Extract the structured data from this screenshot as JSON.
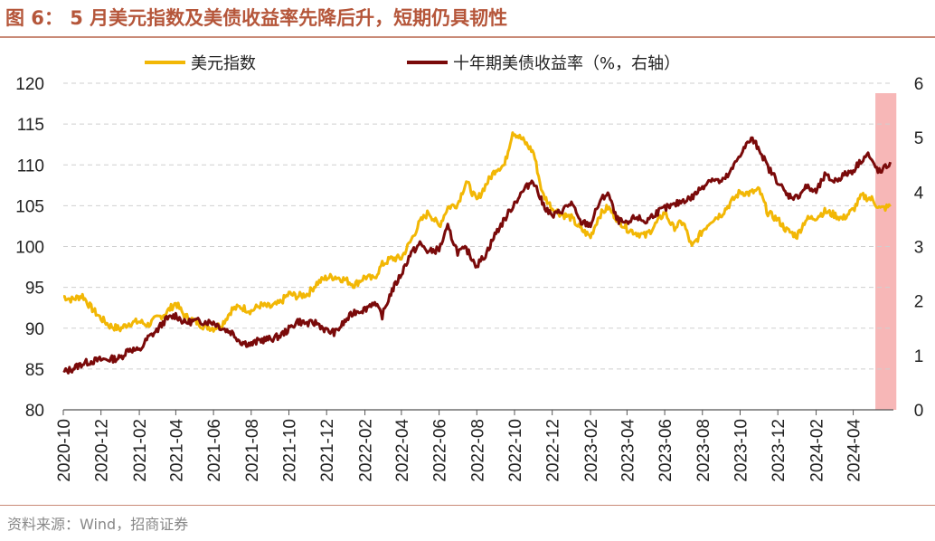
{
  "title": "图 6： 5 月美元指数及美债收益率先降后升，短期仍具韧性",
  "source": "资料来源：Wind，招商证券",
  "colors": {
    "usd": "#F2B705",
    "yield": "#7A0A0A",
    "highlight": "#F7B7B7",
    "grid": "#CFCFCF",
    "brand": "#B5563A"
  },
  "chart_data": {
    "type": "line",
    "title": "",
    "legend": {
      "placement": "top",
      "entries": [
        "美元指数",
        "十年期美债收益率（%，右轴）"
      ]
    },
    "y_left": {
      "lim": [
        80,
        120
      ],
      "ticks": [
        80,
        85,
        90,
        95,
        100,
        105,
        110,
        115,
        120
      ]
    },
    "y_right": {
      "lim": [
        0,
        6
      ],
      "ticks": [
        0,
        1,
        2,
        3,
        4,
        5,
        6
      ]
    },
    "x_ticks": [
      "2020-10",
      "2020-12",
      "2021-02",
      "2021-04",
      "2021-06",
      "2021-08",
      "2021-10",
      "2021-12",
      "2022-02",
      "2022-04",
      "2022-06",
      "2022-08",
      "2022-10",
      "2022-12",
      "2023-02",
      "2023-04",
      "2023-06",
      "2023-08",
      "2023-10",
      "2023-12",
      "2024-02",
      "2024-04"
    ],
    "grid": "horizontal dashed",
    "highlight_period": [
      "2024-05",
      "2024-05"
    ],
    "series": [
      {
        "name": "美元指数",
        "axis": "left",
        "points": [
          [
            "2020-10-01",
            93.9
          ],
          [
            "2020-10-15",
            93.5
          ],
          [
            "2020-11-01",
            94.0
          ],
          [
            "2020-11-15",
            92.5
          ],
          [
            "2020-12-01",
            91.2
          ],
          [
            "2020-12-15",
            90.3
          ],
          [
            "2021-01-01",
            89.9
          ],
          [
            "2021-01-15",
            90.6
          ],
          [
            "2021-02-01",
            90.8
          ],
          [
            "2021-02-15",
            90.4
          ],
          [
            "2021-03-01",
            91.2
          ],
          [
            "2021-03-15",
            91.8
          ],
          [
            "2021-04-01",
            93.1
          ],
          [
            "2021-04-15",
            91.5
          ],
          [
            "2021-05-01",
            90.9
          ],
          [
            "2021-05-15",
            90.3
          ],
          [
            "2021-06-01",
            90.0
          ],
          [
            "2021-06-15",
            90.5
          ],
          [
            "2021-07-01",
            92.3
          ],
          [
            "2021-07-15",
            92.6
          ],
          [
            "2021-08-01",
            92.1
          ],
          [
            "2021-08-15",
            92.8
          ],
          [
            "2021-09-01",
            92.6
          ],
          [
            "2021-09-15",
            93.0
          ],
          [
            "2021-10-01",
            94.2
          ],
          [
            "2021-10-15",
            93.9
          ],
          [
            "2021-11-01",
            94.2
          ],
          [
            "2021-11-15",
            95.5
          ],
          [
            "2021-12-01",
            96.2
          ],
          [
            "2021-12-15",
            96.3
          ],
          [
            "2022-01-01",
            95.9
          ],
          [
            "2022-01-15",
            95.3
          ],
          [
            "2022-02-01",
            96.3
          ],
          [
            "2022-02-15",
            96.0
          ],
          [
            "2022-03-01",
            97.8
          ],
          [
            "2022-03-15",
            98.5
          ],
          [
            "2022-04-01",
            98.6
          ],
          [
            "2022-04-15",
            100.5
          ],
          [
            "2022-05-01",
            103.0
          ],
          [
            "2022-05-15",
            104.2
          ],
          [
            "2022-06-01",
            102.5
          ],
          [
            "2022-06-15",
            104.8
          ],
          [
            "2022-07-01",
            105.2
          ],
          [
            "2022-07-15",
            108.0
          ],
          [
            "2022-08-01",
            105.6
          ],
          [
            "2022-08-15",
            107.5
          ],
          [
            "2022-09-01",
            109.5
          ],
          [
            "2022-09-15",
            110.0
          ],
          [
            "2022-09-28",
            114.1
          ],
          [
            "2022-10-15",
            113.0
          ],
          [
            "2022-11-01",
            111.5
          ],
          [
            "2022-11-15",
            106.5
          ],
          [
            "2022-12-01",
            104.7
          ],
          [
            "2022-12-15",
            104.0
          ],
          [
            "2023-01-01",
            103.5
          ],
          [
            "2023-01-15",
            102.2
          ],
          [
            "2023-02-01",
            101.2
          ],
          [
            "2023-02-15",
            103.8
          ],
          [
            "2023-03-01",
            104.8
          ],
          [
            "2023-03-15",
            103.5
          ],
          [
            "2023-04-01",
            102.2
          ],
          [
            "2023-04-15",
            101.7
          ],
          [
            "2023-05-01",
            101.3
          ],
          [
            "2023-05-15",
            102.5
          ],
          [
            "2023-06-01",
            104.2
          ],
          [
            "2023-06-15",
            102.3
          ],
          [
            "2023-07-01",
            103.0
          ],
          [
            "2023-07-15",
            99.9
          ],
          [
            "2023-08-01",
            101.9
          ],
          [
            "2023-08-15",
            103.2
          ],
          [
            "2023-09-01",
            104.0
          ],
          [
            "2023-09-15",
            105.3
          ],
          [
            "2023-10-01",
            106.7
          ],
          [
            "2023-10-15",
            106.5
          ],
          [
            "2023-11-01",
            106.9
          ],
          [
            "2023-11-15",
            104.1
          ],
          [
            "2023-12-01",
            103.3
          ],
          [
            "2023-12-15",
            102.0
          ],
          [
            "2024-01-01",
            101.3
          ],
          [
            "2024-01-15",
            103.3
          ],
          [
            "2024-02-01",
            103.6
          ],
          [
            "2024-02-15",
            104.3
          ],
          [
            "2024-03-01",
            103.9
          ],
          [
            "2024-03-15",
            103.4
          ],
          [
            "2024-04-01",
            104.5
          ],
          [
            "2024-04-15",
            106.2
          ],
          [
            "2024-05-01",
            105.8
          ],
          [
            "2024-05-15",
            104.6
          ],
          [
            "2024-05-31",
            104.9
          ]
        ]
      },
      {
        "name": "十年期美债收益率（%，右轴）",
        "axis": "right",
        "points": [
          [
            "2020-10-01",
            0.69
          ],
          [
            "2020-10-15",
            0.75
          ],
          [
            "2020-11-01",
            0.85
          ],
          [
            "2020-11-15",
            0.89
          ],
          [
            "2020-12-01",
            0.92
          ],
          [
            "2020-12-15",
            0.93
          ],
          [
            "2021-01-01",
            0.95
          ],
          [
            "2021-01-15",
            1.12
          ],
          [
            "2021-02-01",
            1.08
          ],
          [
            "2021-02-15",
            1.32
          ],
          [
            "2021-03-01",
            1.45
          ],
          [
            "2021-03-15",
            1.65
          ],
          [
            "2021-04-01",
            1.74
          ],
          [
            "2021-04-15",
            1.6
          ],
          [
            "2021-05-01",
            1.63
          ],
          [
            "2021-05-15",
            1.62
          ],
          [
            "2021-06-01",
            1.61
          ],
          [
            "2021-06-15",
            1.5
          ],
          [
            "2021-07-01",
            1.42
          ],
          [
            "2021-07-15",
            1.25
          ],
          [
            "2021-08-01",
            1.2
          ],
          [
            "2021-08-15",
            1.28
          ],
          [
            "2021-09-01",
            1.3
          ],
          [
            "2021-09-15",
            1.35
          ],
          [
            "2021-10-01",
            1.48
          ],
          [
            "2021-10-15",
            1.63
          ],
          [
            "2021-11-01",
            1.58
          ],
          [
            "2021-11-15",
            1.6
          ],
          [
            "2021-12-01",
            1.45
          ],
          [
            "2021-12-15",
            1.42
          ],
          [
            "2022-01-01",
            1.64
          ],
          [
            "2022-01-15",
            1.8
          ],
          [
            "2022-02-01",
            1.85
          ],
          [
            "2022-02-15",
            1.98
          ],
          [
            "2022-03-01",
            1.73
          ],
          [
            "2022-03-15",
            2.15
          ],
          [
            "2022-04-01",
            2.5
          ],
          [
            "2022-04-15",
            2.85
          ],
          [
            "2022-05-01",
            3.05
          ],
          [
            "2022-05-15",
            2.9
          ],
          [
            "2022-06-01",
            2.95
          ],
          [
            "2022-06-15",
            3.35
          ],
          [
            "2022-07-01",
            2.9
          ],
          [
            "2022-07-15",
            2.95
          ],
          [
            "2022-08-01",
            2.65
          ],
          [
            "2022-08-15",
            2.85
          ],
          [
            "2022-09-01",
            3.25
          ],
          [
            "2022-09-15",
            3.5
          ],
          [
            "2022-10-01",
            3.8
          ],
          [
            "2022-10-15",
            4.02
          ],
          [
            "2022-10-31",
            4.23
          ],
          [
            "2022-11-15",
            3.8
          ],
          [
            "2022-12-01",
            3.55
          ],
          [
            "2022-12-15",
            3.65
          ],
          [
            "2023-01-01",
            3.8
          ],
          [
            "2023-01-15",
            3.45
          ],
          [
            "2023-02-01",
            3.4
          ],
          [
            "2023-02-15",
            3.8
          ],
          [
            "2023-03-01",
            4.0
          ],
          [
            "2023-03-15",
            3.5
          ],
          [
            "2023-04-01",
            3.4
          ],
          [
            "2023-04-15",
            3.55
          ],
          [
            "2023-05-01",
            3.45
          ],
          [
            "2023-05-15",
            3.6
          ],
          [
            "2023-06-01",
            3.7
          ],
          [
            "2023-06-15",
            3.75
          ],
          [
            "2023-07-01",
            3.85
          ],
          [
            "2023-07-15",
            3.9
          ],
          [
            "2023-08-01",
            4.1
          ],
          [
            "2023-08-15",
            4.25
          ],
          [
            "2023-09-01",
            4.18
          ],
          [
            "2023-09-15",
            4.35
          ],
          [
            "2023-10-01",
            4.7
          ],
          [
            "2023-10-19",
            4.98
          ],
          [
            "2023-11-01",
            4.8
          ],
          [
            "2023-11-15",
            4.45
          ],
          [
            "2023-12-01",
            4.2
          ],
          [
            "2023-12-15",
            3.95
          ],
          [
            "2024-01-01",
            3.9
          ],
          [
            "2024-01-15",
            4.1
          ],
          [
            "2024-02-01",
            4.0
          ],
          [
            "2024-02-15",
            4.3
          ],
          [
            "2024-03-01",
            4.2
          ],
          [
            "2024-03-15",
            4.3
          ],
          [
            "2024-04-01",
            4.4
          ],
          [
            "2024-04-15",
            4.6
          ],
          [
            "2024-04-25",
            4.7
          ],
          [
            "2024-05-01",
            4.55
          ],
          [
            "2024-05-15",
            4.35
          ],
          [
            "2024-05-31",
            4.55
          ]
        ]
      }
    ]
  }
}
